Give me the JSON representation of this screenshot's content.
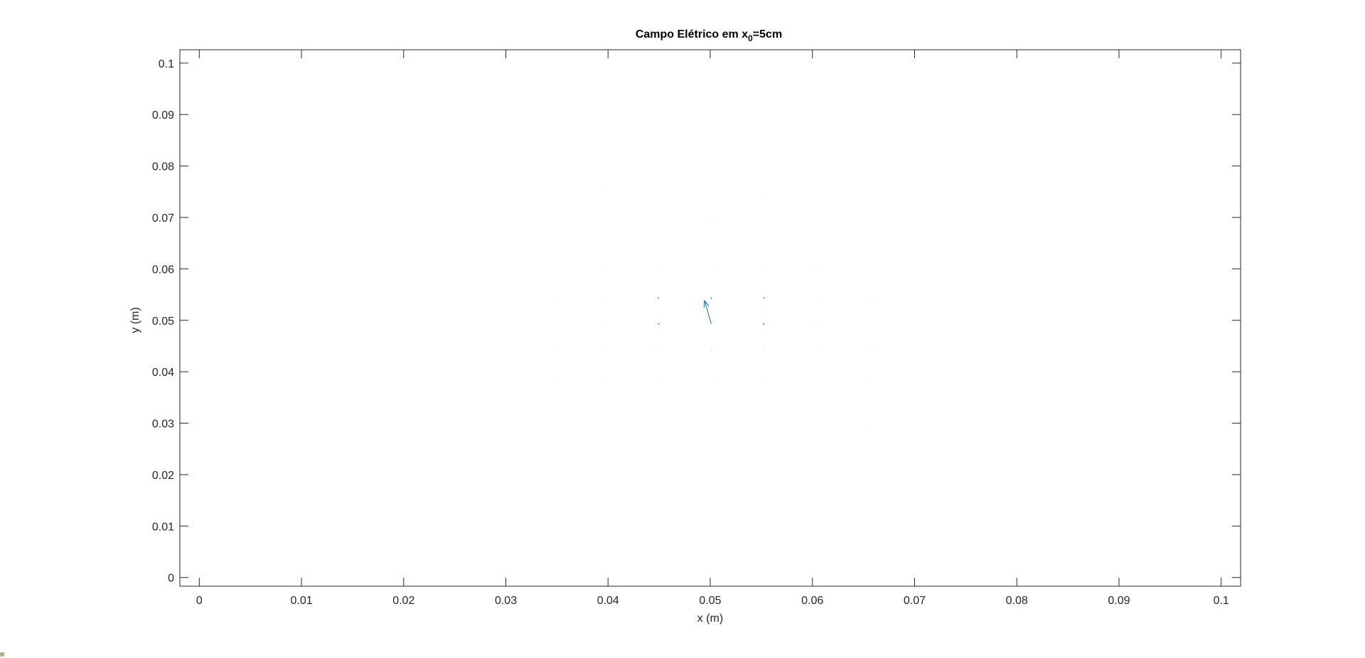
{
  "chart_data": {
    "type": "quiver",
    "title": "Campo Elétrico em x",
    "title_subscript": "0",
    "title_suffix": "=5cm",
    "xlabel": "x (m)",
    "ylabel": "y (m)",
    "xlim": [
      -0.0019,
      0.1019
    ],
    "ylim": [
      -0.0017,
      0.1026
    ],
    "xticks": [
      0,
      0.01,
      0.02,
      0.03,
      0.04,
      0.05,
      0.06,
      0.07,
      0.08,
      0.09,
      0.1
    ],
    "xtick_labels": [
      "0",
      "0.01",
      "0.02",
      "0.03",
      "0.04",
      "0.05",
      "0.06",
      "0.07",
      "0.08",
      "0.09",
      "0.1"
    ],
    "yticks": [
      0,
      0.01,
      0.02,
      0.03,
      0.04,
      0.05,
      0.06,
      0.07,
      0.08,
      0.09,
      0.1
    ],
    "ytick_labels": [
      "0",
      "0.01",
      "0.02",
      "0.03",
      "0.04",
      "0.05",
      "0.06",
      "0.07",
      "0.08",
      "0.09",
      "0.1"
    ],
    "grid": false,
    "color": "#0072BD",
    "field": {
      "charge_x": 0.05,
      "charge_y": 0.05,
      "direction": "inward",
      "x_start": -0.0019,
      "x_step": 0.0052,
      "x_count": 20,
      "y_start": -0.0017,
      "y_step": 0.0051,
      "y_count": 21
    }
  }
}
